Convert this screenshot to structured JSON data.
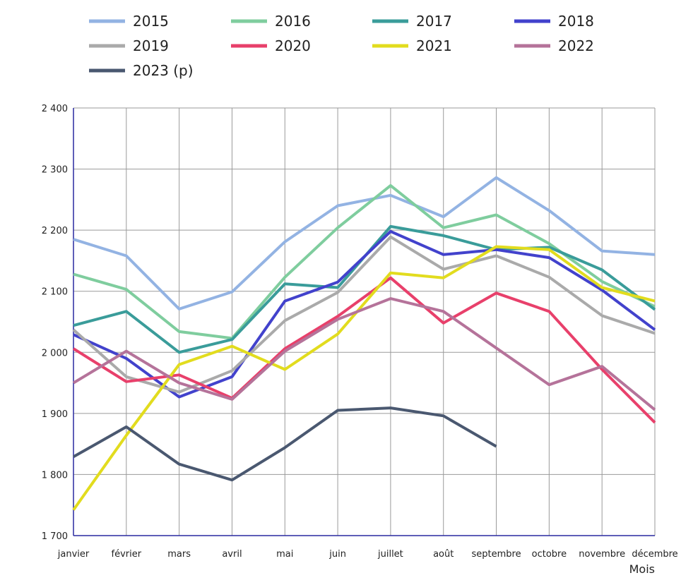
{
  "chart_data": {
    "type": "line",
    "title": "",
    "xlabel": "Mois",
    "ylabel": "",
    "ylim": [
      1700,
      2400
    ],
    "y_ticks": [
      1700,
      1800,
      1900,
      2000,
      2100,
      2200,
      2300,
      2400
    ],
    "y_tick_labels": [
      "1 700",
      "1 800",
      "1 900",
      "2 000",
      "2 100",
      "2 200",
      "2 300",
      "2 400"
    ],
    "categories": [
      "janvier",
      "février",
      "mars",
      "avril",
      "mai",
      "juin",
      "juillet",
      "août",
      "septembre",
      "octobre",
      "novembre",
      "décembre"
    ],
    "grid": true,
    "legend_position": "top",
    "series": [
      {
        "name": "2015",
        "color": "#93b3e3",
        "values": [
          2185,
          2158,
          2071,
          2099,
          2181,
          2240,
          2257,
          2222,
          2286,
          2232,
          2166,
          2160
        ]
      },
      {
        "name": "2016",
        "color": "#7fcd9e",
        "values": [
          2128,
          2103,
          2034,
          2023,
          2123,
          2204,
          2273,
          2204,
          2225,
          2178,
          2116,
          2075
        ]
      },
      {
        "name": "2017",
        "color": "#3a9c9a",
        "values": [
          2044,
          2067,
          2000,
          2021,
          2112,
          2106,
          2206,
          2191,
          2168,
          2172,
          2135,
          2070
        ]
      },
      {
        "name": "2018",
        "color": "#4242cc",
        "values": [
          2029,
          1990,
          1927,
          1960,
          2084,
          2115,
          2198,
          2160,
          2168,
          2155,
          2102,
          2037
        ]
      },
      {
        "name": "2019",
        "color": "#aaaaaa",
        "values": [
          2037,
          1960,
          1935,
          1970,
          2052,
          2098,
          2189,
          2136,
          2158,
          2123,
          2060,
          2031
        ]
      },
      {
        "name": "2020",
        "color": "#e8406b",
        "values": [
          2006,
          1952,
          1963,
          1925,
          2006,
          2059,
          2122,
          2048,
          2097,
          2067,
          1972,
          1885
        ]
      },
      {
        "name": "2021",
        "color": "#e2dc1e",
        "values": [
          1742,
          1864,
          1980,
          2010,
          1972,
          2030,
          2130,
          2122,
          2173,
          2168,
          2106,
          2084
        ]
      },
      {
        "name": "2022",
        "color": "#b5739a",
        "values": [
          1950,
          2002,
          1950,
          1923,
          2002,
          2054,
          2088,
          2067,
          2007,
          1947,
          1977,
          1906
        ]
      },
      {
        "name": "2023 (p)",
        "color": "#4a5870",
        "values": [
          1829,
          1878,
          1817,
          1791,
          1844,
          1905,
          1909,
          1896,
          1846,
          null,
          null,
          null
        ]
      }
    ]
  }
}
